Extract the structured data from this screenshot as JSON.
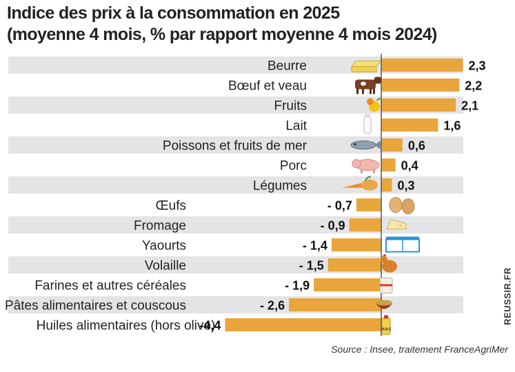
{
  "header": {
    "title_line1": "Indice des prix à la consommation en 2025",
    "title_line2": "(moyenne 4 mois, % par rapport moyenne 4 mois 2024)"
  },
  "footer": {
    "source": "Source : Insee, traitement FranceAgriMer",
    "credit": "REUSSIR.FR"
  },
  "colors": {
    "bar": "#e8a63c",
    "row_band": "#e4e4e6",
    "axis_line": "#555555",
    "label_text": "#222222"
  },
  "chart_data": {
    "type": "bar",
    "orientation": "horizontal",
    "title": "Indice des prix à la consommation en 2025",
    "subtitle": "(moyenne 4 mois, % par rapport moyenne 4 mois 2024)",
    "xlabel": "",
    "ylabel": "",
    "xlim": [
      -4.4,
      2.3
    ],
    "categories": [
      "Beurre",
      "Bœuf et veau",
      "Fruits",
      "Lait",
      "Poissons et fruits de mer",
      "Porc",
      "Légumes",
      "Œufs",
      "Fromage",
      "Yaourts",
      "Volaille",
      "Farines et autres céréales",
      "Pâtes alimentaires et couscous",
      "Huiles alimentaires (hors olive)"
    ],
    "values": [
      2.3,
      2.2,
      2.1,
      1.6,
      0.6,
      0.4,
      0.3,
      -0.7,
      -0.9,
      -1.4,
      -1.5,
      -1.9,
      -2.6,
      -4.4
    ],
    "value_labels": [
      "2,3",
      "2,2",
      "2,1",
      "1,6",
      "0,6",
      "0,4",
      "0,3",
      "- 0,7",
      "- 0,9",
      "- 1,4",
      "- 1,5",
      "- 1,9",
      "- 2,6",
      "-4,4"
    ],
    "icons": [
      "butter-icon",
      "cow-icon",
      "fruit-icon",
      "milk-bottle-icon",
      "fish-icon",
      "pig-icon",
      "vegetables-icon",
      "eggs-icon",
      "cheese-icon",
      "yogurt-icon",
      "chicken-icon",
      "flour-bag-icon",
      "pasta-bowl-icon",
      "oil-bottle-icon"
    ],
    "oil_bottle_label": "HUILE",
    "legend": "none",
    "grid": false
  }
}
